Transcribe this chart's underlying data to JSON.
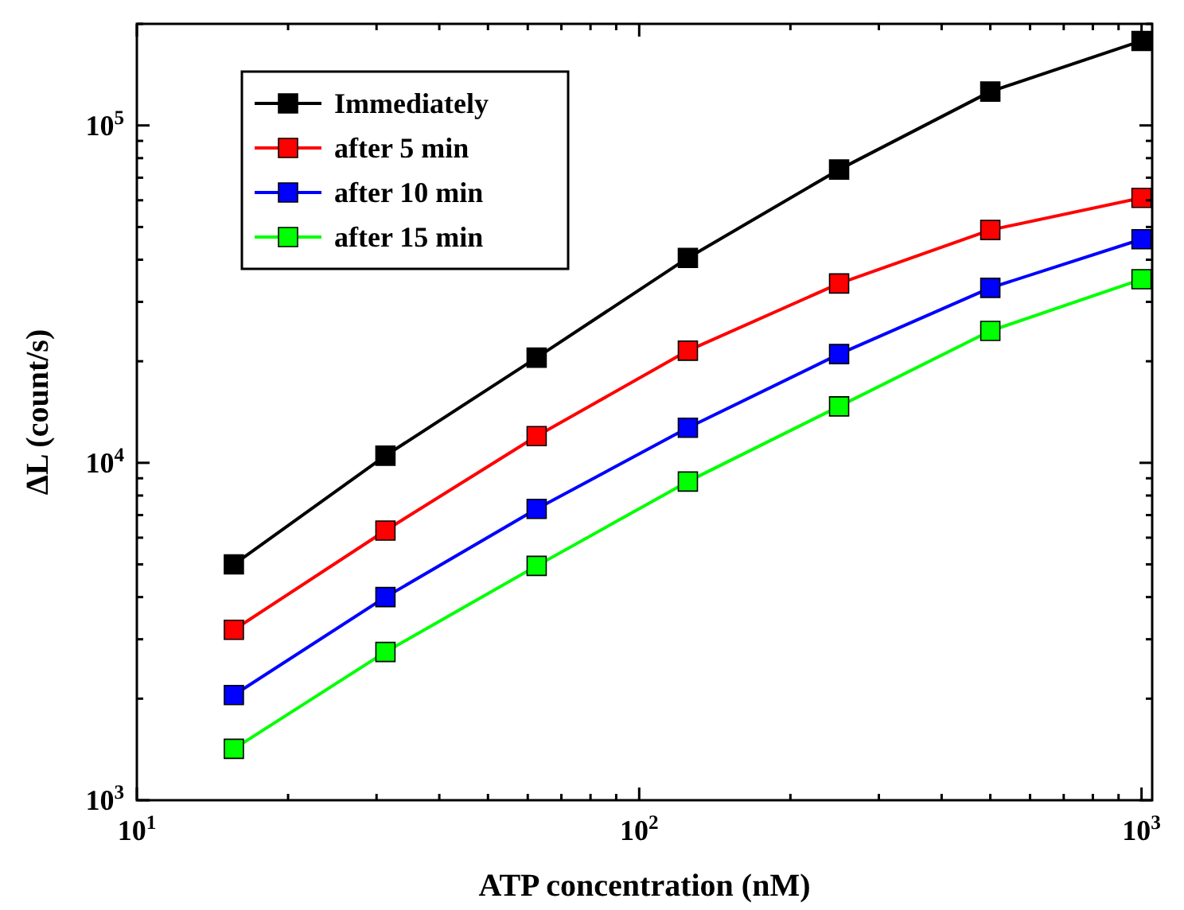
{
  "chart_data": {
    "type": "line",
    "xlabel": "ATP concentration (nM)",
    "ylabel": "ΔL (count/s)",
    "log": "xy",
    "marker": "square",
    "line_style": "solid",
    "legend": "top left",
    "grid": false,
    "x": [
      15.6,
      31.25,
      62.5,
      125,
      250,
      500,
      1000
    ],
    "xlim": [
      10,
      1050
    ],
    "xticks": [
      {
        "value": 10,
        "label": "10$^{1}$"
      },
      {
        "value": 20,
        "label": null
      },
      {
        "value": 30,
        "label": null
      },
      {
        "value": 40,
        "label": null
      },
      {
        "value": 50,
        "label": null
      },
      {
        "value": 60,
        "label": null
      },
      {
        "value": 70,
        "label": null
      },
      {
        "value": 80,
        "label": null
      },
      {
        "value": 90,
        "label": null
      },
      {
        "value": 100,
        "label": "10$^{2}$"
      },
      {
        "value": 200,
        "label": null
      },
      {
        "value": 300,
        "label": null
      },
      {
        "value": 400,
        "label": null
      },
      {
        "value": 500,
        "label": null
      },
      {
        "value": 600,
        "label": null
      },
      {
        "value": 700,
        "label": null
      },
      {
        "value": 800,
        "label": null
      },
      {
        "value": 900,
        "label": null
      },
      {
        "value": 1000,
        "label": "10$^{3}$"
      }
    ],
    "ylim": [
      1000,
      200000
    ],
    "yticks": [
      {
        "value": 1000,
        "label": "10$^{3}$"
      },
      {
        "value": 2000,
        "label": null
      },
      {
        "value": 3000,
        "label": null
      },
      {
        "value": 4000,
        "label": null
      },
      {
        "value": 5000,
        "label": null
      },
      {
        "value": 6000,
        "label": null
      },
      {
        "value": 7000,
        "label": null
      },
      {
        "value": 8000,
        "label": null
      },
      {
        "value": 9000,
        "label": null
      },
      {
        "value": 10000,
        "label": "10$^{4}$"
      },
      {
        "value": 20000,
        "label": null
      },
      {
        "value": 30000,
        "label": null
      },
      {
        "value": 40000,
        "label": null
      },
      {
        "value": 50000,
        "label": null
      },
      {
        "value": 60000,
        "label": null
      },
      {
        "value": 70000,
        "label": null
      },
      {
        "value": 80000,
        "label": null
      },
      {
        "value": 90000,
        "label": null
      },
      {
        "value": 100000,
        "label": "10$^{5}$"
      },
      {
        "value": 200000,
        "label": null
      }
    ],
    "series": [
      {
        "name": "Immediately",
        "color": "#000000",
        "values": [
          5000,
          10500,
          20500,
          40500,
          74000,
          126000,
          178000
        ]
      },
      {
        "name": "after 5 min",
        "color": "#ff0000",
        "values": [
          3200,
          6300,
          12000,
          21500,
          34000,
          49000,
          61000
        ]
      },
      {
        "name": "after 10 min",
        "color": "#0000ff",
        "values": [
          2050,
          4000,
          7300,
          12700,
          21000,
          33000,
          46000
        ]
      },
      {
        "name": "after 15 min",
        "color": "#00ff00",
        "values": [
          1420,
          2750,
          4950,
          8800,
          14700,
          24600,
          35000
        ]
      }
    ]
  }
}
